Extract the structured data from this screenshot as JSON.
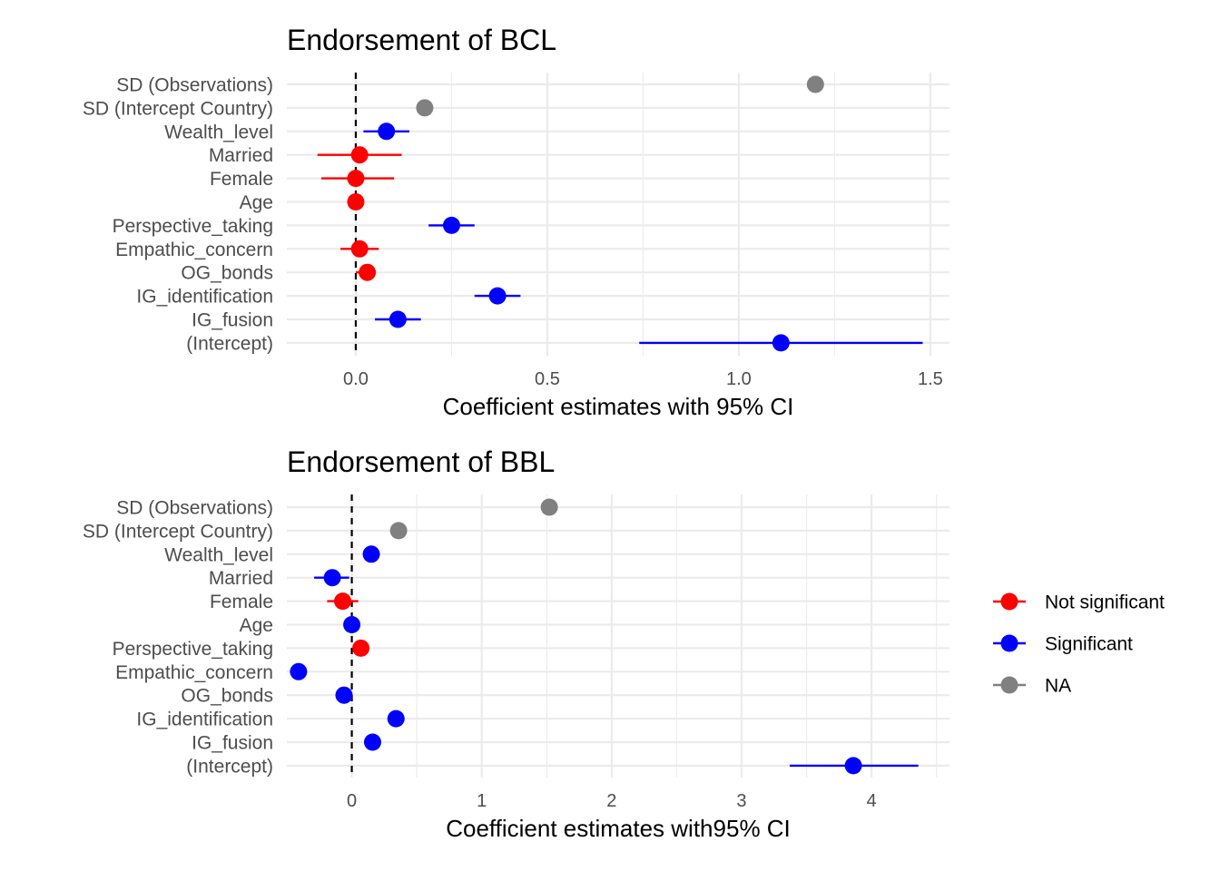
{
  "colors": {
    "not_significant": "#ff0000",
    "significant": "#0000ff",
    "na": "#808080"
  },
  "legend": [
    {
      "key": "not_significant",
      "label": "Not significant",
      "color": "#ff0000"
    },
    {
      "key": "significant",
      "label": "Significant",
      "color": "#0000ff"
    },
    {
      "key": "na",
      "label": "NA",
      "color": "#808080"
    }
  ],
  "chart_data": [
    {
      "type": "scatter",
      "title": "Endorsement of BCL",
      "xlabel": "Coefficient estimates with 95% CI",
      "ylabel": "",
      "xlim": [
        -0.18,
        1.55
      ],
      "xticks": [
        0,
        0.5,
        1,
        1.5
      ],
      "xtick_labels": [
        "0.0",
        "0.5",
        "1.0",
        "1.5"
      ],
      "grid": true,
      "reference_line": 0,
      "categories": [
        "SD (Observations)",
        "SD (Intercept Country)",
        "Wealth_level",
        "Married",
        "Female",
        "Age",
        "Perspective_taking",
        "Empathic_concern",
        "OG_bonds",
        "IG_identification",
        "IG_fusion",
        "(Intercept)"
      ],
      "points": [
        {
          "term": "SD (Observations)",
          "estimate": 1.2,
          "lower": null,
          "upper": null,
          "status": "na"
        },
        {
          "term": "SD (Intercept Country)",
          "estimate": 0.18,
          "lower": null,
          "upper": null,
          "status": "na"
        },
        {
          "term": "Wealth_level",
          "estimate": 0.08,
          "lower": 0.02,
          "upper": 0.14,
          "status": "significant"
        },
        {
          "term": "Married",
          "estimate": 0.01,
          "lower": -0.1,
          "upper": 0.12,
          "status": "not_significant"
        },
        {
          "term": "Female",
          "estimate": 0.0,
          "lower": -0.09,
          "upper": 0.1,
          "status": "not_significant"
        },
        {
          "term": "Age",
          "estimate": 0.0,
          "lower": -0.01,
          "upper": 0.01,
          "status": "not_significant"
        },
        {
          "term": "Perspective_taking",
          "estimate": 0.25,
          "lower": 0.19,
          "upper": 0.31,
          "status": "significant"
        },
        {
          "term": "Empathic_concern",
          "estimate": 0.01,
          "lower": -0.04,
          "upper": 0.06,
          "status": "not_significant"
        },
        {
          "term": "OG_bonds",
          "estimate": 0.03,
          "lower": 0.0,
          "upper": 0.05,
          "status": "not_significant"
        },
        {
          "term": "IG_identification",
          "estimate": 0.37,
          "lower": 0.31,
          "upper": 0.43,
          "status": "significant"
        },
        {
          "term": "IG_fusion",
          "estimate": 0.11,
          "lower": 0.05,
          "upper": 0.17,
          "status": "significant"
        },
        {
          "term": "(Intercept)",
          "estimate": 1.11,
          "lower": 0.74,
          "upper": 1.48,
          "status": "significant"
        }
      ]
    },
    {
      "type": "scatter",
      "title": "Endorsement of BBL",
      "xlabel": "Coefficient estimates with95% CI",
      "ylabel": "",
      "xlim": [
        -0.5,
        4.6
      ],
      "xticks": [
        0,
        1,
        2,
        3,
        4
      ],
      "xtick_labels": [
        "0",
        "1",
        "2",
        "3",
        "4"
      ],
      "grid": true,
      "reference_line": 0,
      "categories": [
        "SD (Observations)",
        "SD (Intercept Country)",
        "Wealth_level",
        "Married",
        "Female",
        "Age",
        "Perspective_taking",
        "Empathic_concern",
        "OG_bonds",
        "IG_identification",
        "IG_fusion",
        "(Intercept)"
      ],
      "points": [
        {
          "term": "SD (Observations)",
          "estimate": 1.52,
          "lower": null,
          "upper": null,
          "status": "na"
        },
        {
          "term": "SD (Intercept Country)",
          "estimate": 0.36,
          "lower": null,
          "upper": null,
          "status": "na"
        },
        {
          "term": "Wealth_level",
          "estimate": 0.15,
          "lower": 0.1,
          "upper": 0.21,
          "status": "significant"
        },
        {
          "term": "Married",
          "estimate": -0.15,
          "lower": -0.29,
          "upper": -0.02,
          "status": "significant"
        },
        {
          "term": "Female",
          "estimate": -0.07,
          "lower": -0.19,
          "upper": 0.05,
          "status": "not_significant"
        },
        {
          "term": "Age",
          "estimate": 0.0,
          "lower": -0.02,
          "upper": 0.02,
          "status": "significant"
        },
        {
          "term": "Perspective_taking",
          "estimate": 0.07,
          "lower": 0.02,
          "upper": 0.12,
          "status": "not_significant"
        },
        {
          "term": "Empathic_concern",
          "estimate": -0.41,
          "lower": -0.45,
          "upper": -0.37,
          "status": "significant"
        },
        {
          "term": "OG_bonds",
          "estimate": -0.06,
          "lower": -0.1,
          "upper": -0.02,
          "status": "significant"
        },
        {
          "term": "IG_identification",
          "estimate": 0.34,
          "lower": 0.29,
          "upper": 0.4,
          "status": "significant"
        },
        {
          "term": "IG_fusion",
          "estimate": 0.16,
          "lower": 0.11,
          "upper": 0.21,
          "status": "significant"
        },
        {
          "term": "(Intercept)",
          "estimate": 3.86,
          "lower": 3.37,
          "upper": 4.36,
          "status": "significant"
        }
      ]
    }
  ]
}
